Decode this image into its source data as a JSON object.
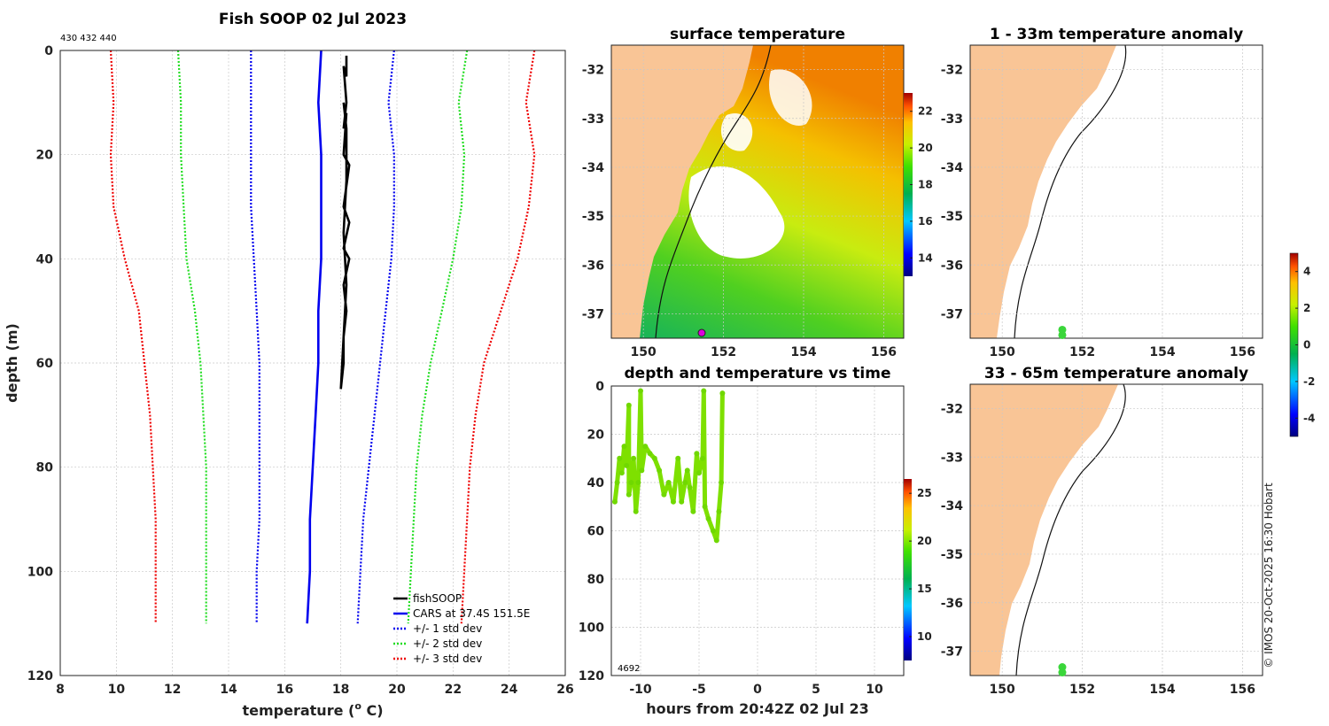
{
  "credit": "© IMOS 20-Oct-2025 16:30 Hobart",
  "chart_data": [
    {
      "id": "profile",
      "type": "line",
      "title": "Fish SOOP 02 Jul 2023",
      "ids_label": "430 432 440",
      "xlabel": "temperature (",
      "xlabel_sup": "o",
      "xlabel_tail": " C)",
      "ylabel": "depth (m)",
      "xlim": [
        8,
        26
      ],
      "ylim": [
        0,
        120
      ],
      "y_inverted": true,
      "xticks": [
        8,
        10,
        12,
        14,
        16,
        18,
        20,
        22,
        24,
        26
      ],
      "yticks": [
        0,
        20,
        40,
        60,
        80,
        100,
        120
      ],
      "legend": [
        "fishSOOP",
        "CARS at 37.4S 151.5E",
        "+/- 1 std dev",
        "+/- 2 std dev",
        "+/- 3 std dev"
      ],
      "legend_position": "bottom-right",
      "series": [
        {
          "name": "CARS at 37.4S 151.5E",
          "color": "#0000ee",
          "style": "solid",
          "points": [
            [
              17.3,
              0
            ],
            [
              17.2,
              10
            ],
            [
              17.3,
              20
            ],
            [
              17.3,
              30
            ],
            [
              17.3,
              40
            ],
            [
              17.2,
              50
            ],
            [
              17.2,
              60
            ],
            [
              17.1,
              70
            ],
            [
              17.0,
              80
            ],
            [
              16.9,
              90
            ],
            [
              16.9,
              100
            ],
            [
              16.8,
              110
            ]
          ]
        },
        {
          "name": "+/- 1 std dev (low)",
          "color": "#0000ee",
          "style": "dotted",
          "points": [
            [
              14.8,
              0
            ],
            [
              14.8,
              10
            ],
            [
              14.8,
              20
            ],
            [
              14.8,
              30
            ],
            [
              14.9,
              40
            ],
            [
              15.0,
              50
            ],
            [
              15.1,
              60
            ],
            [
              15.1,
              70
            ],
            [
              15.1,
              80
            ],
            [
              15.1,
              90
            ],
            [
              15.0,
              100
            ],
            [
              15.0,
              110
            ]
          ]
        },
        {
          "name": "+/- 1 std dev (high)",
          "color": "#0000ee",
          "style": "dotted",
          "points": [
            [
              19.9,
              0
            ],
            [
              19.7,
              10
            ],
            [
              19.9,
              20
            ],
            [
              19.9,
              30
            ],
            [
              19.8,
              40
            ],
            [
              19.6,
              50
            ],
            [
              19.4,
              60
            ],
            [
              19.2,
              70
            ],
            [
              19.0,
              80
            ],
            [
              18.8,
              90
            ],
            [
              18.7,
              100
            ],
            [
              18.6,
              110
            ]
          ]
        },
        {
          "name": "+/- 2 std dev (low)",
          "color": "#22dd22",
          "style": "dotted",
          "points": [
            [
              12.2,
              0
            ],
            [
              12.3,
              10
            ],
            [
              12.3,
              20
            ],
            [
              12.4,
              30
            ],
            [
              12.5,
              40
            ],
            [
              12.8,
              50
            ],
            [
              13.0,
              60
            ],
            [
              13.1,
              70
            ],
            [
              13.2,
              80
            ],
            [
              13.2,
              90
            ],
            [
              13.2,
              100
            ],
            [
              13.2,
              110
            ]
          ]
        },
        {
          "name": "+/- 2 std dev (high)",
          "color": "#22dd22",
          "style": "dotted",
          "points": [
            [
              22.5,
              0
            ],
            [
              22.2,
              10
            ],
            [
              22.4,
              20
            ],
            [
              22.3,
              30
            ],
            [
              22.0,
              40
            ],
            [
              21.6,
              50
            ],
            [
              21.2,
              60
            ],
            [
              20.9,
              70
            ],
            [
              20.7,
              80
            ],
            [
              20.6,
              90
            ],
            [
              20.5,
              100
            ],
            [
              20.4,
              110
            ]
          ]
        },
        {
          "name": "+/- 3 std dev (low)",
          "color": "#ee0000",
          "style": "dotted",
          "points": [
            [
              9.8,
              0
            ],
            [
              9.9,
              10
            ],
            [
              9.8,
              20
            ],
            [
              9.9,
              30
            ],
            [
              10.3,
              40
            ],
            [
              10.8,
              50
            ],
            [
              11.0,
              60
            ],
            [
              11.2,
              70
            ],
            [
              11.3,
              80
            ],
            [
              11.4,
              90
            ],
            [
              11.4,
              100
            ],
            [
              11.4,
              110
            ]
          ]
        },
        {
          "name": "+/- 3 std dev (high)",
          "color": "#ee0000",
          "style": "dotted",
          "points": [
            [
              24.9,
              0
            ],
            [
              24.6,
              10
            ],
            [
              24.9,
              20
            ],
            [
              24.7,
              30
            ],
            [
              24.3,
              40
            ],
            [
              23.7,
              50
            ],
            [
              23.1,
              60
            ],
            [
              22.8,
              70
            ],
            [
              22.6,
              80
            ],
            [
              22.5,
              90
            ],
            [
              22.4,
              100
            ],
            [
              22.3,
              110
            ]
          ]
        },
        {
          "name": "fishSOOP",
          "color": "#000000",
          "style": "solid",
          "points": [
            [
              18.2,
              1
            ],
            [
              18.2,
              5
            ],
            [
              18.1,
              3
            ],
            [
              18.2,
              10
            ],
            [
              18.1,
              15
            ],
            [
              18.2,
              12
            ],
            [
              18.1,
              20
            ],
            [
              18.3,
              22
            ],
            [
              18.1,
              30
            ],
            [
              18.3,
              33
            ],
            [
              18.1,
              38
            ],
            [
              18.3,
              40
            ],
            [
              18.1,
              45
            ],
            [
              18.2,
              50
            ],
            [
              18.1,
              55
            ],
            [
              18.1,
              60
            ],
            [
              18.0,
              65
            ],
            [
              18.1,
              55
            ],
            [
              18.2,
              45
            ],
            [
              18.1,
              35
            ],
            [
              18.2,
              25
            ],
            [
              18.2,
              15
            ],
            [
              18.1,
              10
            ]
          ]
        }
      ]
    },
    {
      "id": "sst",
      "type": "heatmap",
      "title": "surface temperature",
      "xlim": [
        149.2,
        156.5
      ],
      "ylim": [
        -37.5,
        -31.5
      ],
      "xticks": [
        150,
        152,
        154,
        156
      ],
      "yticks": [
        -32,
        -33,
        -34,
        -35,
        -36,
        -37
      ],
      "colorbar_ticks": [
        14,
        16,
        18,
        20,
        22
      ],
      "colorbar_range": [
        13,
        23
      ]
    },
    {
      "id": "anom1",
      "type": "heatmap",
      "title": "1 - 33m temperature anomaly",
      "xlim": [
        149.2,
        156.5
      ],
      "ylim": [
        -37.5,
        -31.5
      ],
      "xticks": [
        150,
        152,
        154,
        156
      ],
      "yticks": [
        -32,
        -33,
        -34,
        -35,
        -36,
        -37
      ],
      "marker": [
        151.5,
        -37.4
      ]
    },
    {
      "id": "anom2",
      "type": "heatmap",
      "title": "33 - 65m temperature anomaly",
      "xlim": [
        149.2,
        156.5
      ],
      "ylim": [
        -37.5,
        -31.5
      ],
      "xticks": [
        150,
        152,
        154,
        156
      ],
      "yticks": [
        -32,
        -33,
        -34,
        -35,
        -36,
        -37
      ],
      "marker": [
        151.5,
        -37.4
      ]
    },
    {
      "id": "anom_colorbar",
      "type": "heatmap",
      "colorbar_ticks": [
        -4,
        -2,
        0,
        2,
        4
      ],
      "colorbar_range": [
        -5,
        5
      ]
    },
    {
      "id": "depthtime",
      "type": "scatter",
      "title": "depth and temperature vs time",
      "xlabel": "hours from 20:42Z 02 Jul 23",
      "xlim": [
        -12.5,
        12.5
      ],
      "ylim": [
        0,
        120
      ],
      "y_inverted": true,
      "xticks": [
        -10,
        -5,
        0,
        5,
        10
      ],
      "yticks": [
        0,
        20,
        40,
        60,
        80,
        100,
        120
      ],
      "ids_label": "4692",
      "colorbar_ticks": [
        10,
        15,
        20,
        25
      ],
      "colorbar_range": [
        7.5,
        26.5
      ],
      "points": [
        [
          -12.2,
          48
        ],
        [
          -12.0,
          40
        ],
        [
          -11.8,
          30
        ],
        [
          -11.6,
          36
        ],
        [
          -11.4,
          25
        ],
        [
          -11.2,
          33
        ],
        [
          -11.0,
          8
        ],
        [
          -11.0,
          45
        ],
        [
          -10.8,
          40
        ],
        [
          -10.6,
          30
        ],
        [
          -10.4,
          52
        ],
        [
          -10.2,
          40
        ],
        [
          -10.0,
          2
        ],
        [
          -9.9,
          35
        ],
        [
          -9.6,
          25
        ],
        [
          -9.2,
          28
        ],
        [
          -8.8,
          30
        ],
        [
          -8.4,
          35
        ],
        [
          -8.0,
          45
        ],
        [
          -7.6,
          40
        ],
        [
          -7.2,
          48
        ],
        [
          -6.8,
          30
        ],
        [
          -6.5,
          48
        ],
        [
          -6.2,
          40
        ],
        [
          -6.0,
          35
        ],
        [
          -5.8,
          42
        ],
        [
          -5.5,
          52
        ],
        [
          -5.2,
          28
        ],
        [
          -5.0,
          36
        ],
        [
          -4.7,
          30
        ],
        [
          -4.6,
          2
        ],
        [
          -4.5,
          50
        ],
        [
          -4.2,
          55
        ],
        [
          -3.8,
          60
        ],
        [
          -3.5,
          64
        ],
        [
          -3.3,
          52
        ],
        [
          -3.1,
          40
        ],
        [
          -3.0,
          3
        ]
      ]
    }
  ]
}
